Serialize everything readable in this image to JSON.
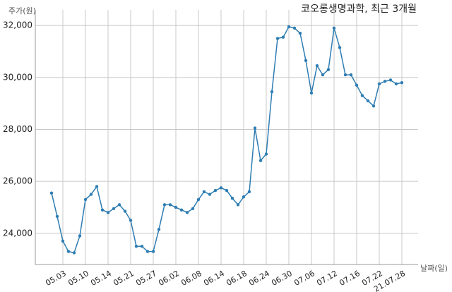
{
  "chart_data": {
    "type": "line",
    "title": "코오롱생명과학, 최근 3개월",
    "y_label": "주가(원)",
    "x_label": "날짜(일)",
    "categories": [
      null,
      null,
      "05.03",
      null,
      null,
      null,
      "05.10",
      null,
      null,
      null,
      "05.14",
      null,
      null,
      null,
      "05.21",
      null,
      null,
      null,
      "05.27",
      null,
      null,
      null,
      "06.02",
      null,
      null,
      null,
      "06.08",
      null,
      null,
      null,
      "06.14",
      null,
      null,
      null,
      "06.18",
      null,
      null,
      null,
      "06.24",
      null,
      null,
      null,
      "06.30",
      null,
      null,
      null,
      "07.06",
      null,
      null,
      null,
      "07.12",
      null,
      null,
      null,
      "07.16",
      null,
      null,
      null,
      "07.22",
      null,
      null,
      null,
      "21.07.28"
    ],
    "series": [
      {
        "color": "#2e7db3",
        "values": [
          25550,
          24650,
          23700,
          23300,
          23250,
          23900,
          25300,
          25500,
          25800,
          24900,
          24800,
          24950,
          25100,
          24850,
          24500,
          23500,
          23500,
          23300,
          23300,
          24150,
          25100,
          25100,
          25000,
          24900,
          24800,
          24950,
          25300,
          25600,
          25500,
          25650,
          25750,
          25650,
          25350,
          25100,
          25400,
          25600,
          28050,
          26800,
          27050,
          29450,
          31500,
          31550,
          31950,
          31900,
          31700,
          30650,
          29400,
          30450,
          30100,
          30300,
          31900,
          31150,
          30100,
          30100,
          29700,
          29300,
          29100,
          28900,
          29750,
          29850,
          29900,
          29750,
          29800
        ]
      }
    ],
    "ylim": [
      22800,
      32600
    ],
    "yticks": [
      {
        "value": 24000,
        "label": "24,000"
      },
      {
        "value": 26000,
        "label": "26,000"
      },
      {
        "value": 28000,
        "label": "28,000"
      },
      {
        "value": 30000,
        "label": "30,000"
      },
      {
        "value": 32000,
        "label": "32,000"
      }
    ],
    "grid": true
  }
}
